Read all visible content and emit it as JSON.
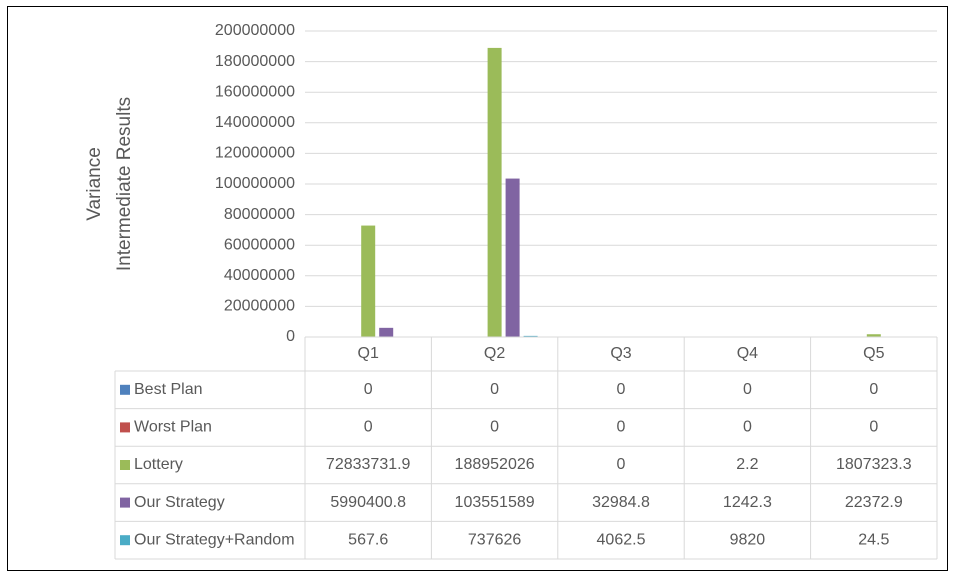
{
  "chart_data": {
    "type": "bar",
    "ylabel": [
      "Variance",
      "Intermediate Results"
    ],
    "categories": [
      "Q1",
      "Q2",
      "Q3",
      "Q4",
      "Q5"
    ],
    "series": [
      {
        "name": "Best Plan",
        "color": "#4F81BD",
        "values": [
          0,
          0,
          0,
          0,
          0
        ]
      },
      {
        "name": "Worst Plan",
        "color": "#C0504D",
        "values": [
          0,
          0,
          0,
          0,
          0
        ]
      },
      {
        "name": "Lottery",
        "color": "#9BBB59",
        "values": [
          72833731.9,
          188952026,
          0,
          2.2,
          1807323.3
        ]
      },
      {
        "name": "Our Strategy",
        "color": "#8064A2",
        "values": [
          5990400.8,
          103551589,
          32984.8,
          1242.3,
          22372.9
        ]
      },
      {
        "name": "Our Strategy+Random",
        "color": "#4BACC6",
        "values": [
          567.6,
          737626,
          4062.5,
          9820,
          24.5
        ]
      }
    ],
    "ylim": [
      0,
      200000000
    ],
    "yticks": [
      0,
      20000000,
      40000000,
      60000000,
      80000000,
      100000000,
      120000000,
      140000000,
      160000000,
      180000000,
      200000000
    ],
    "grid": true,
    "data_table": true
  }
}
